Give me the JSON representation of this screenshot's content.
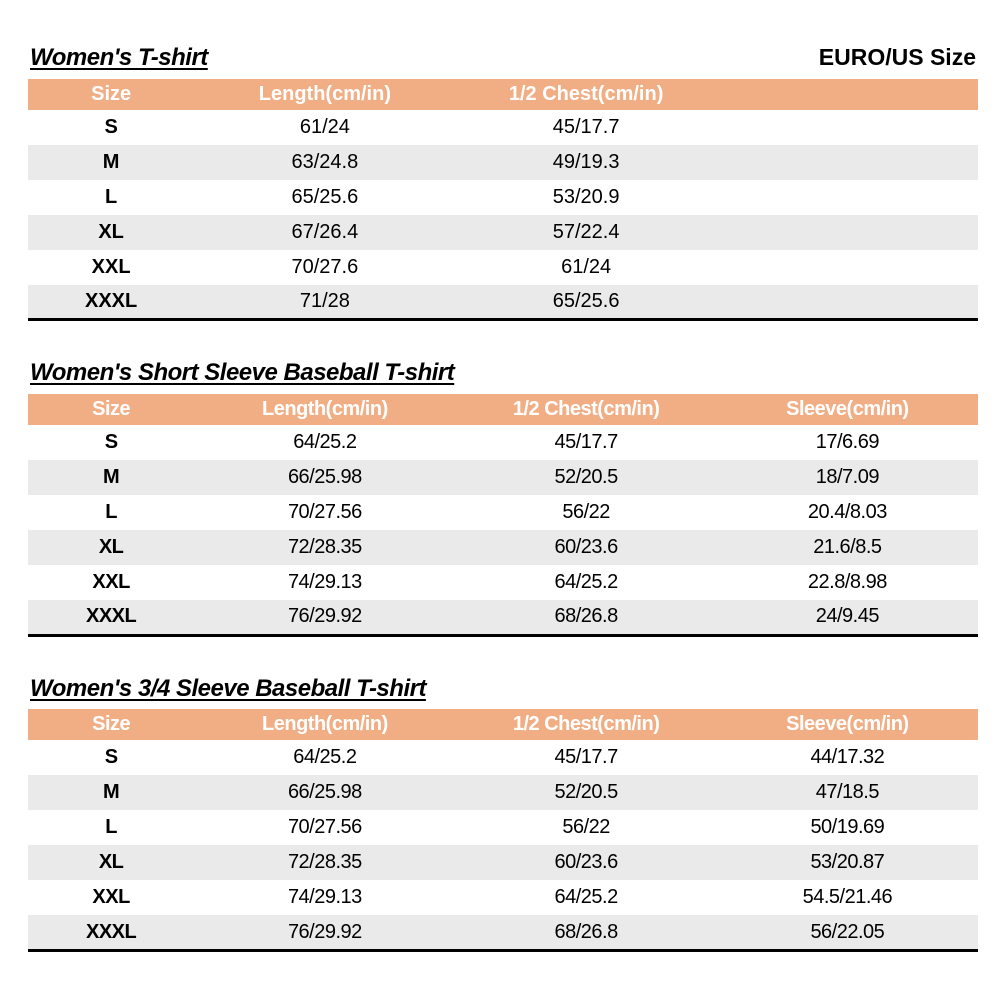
{
  "header": {
    "size_standard": "EURO/US Size"
  },
  "colors": {
    "header_bg": "#F1AE84",
    "header_text": "#FFFFFF",
    "row_alt_bg": "#EAEAEA",
    "border": "#000000"
  },
  "tables": [
    {
      "title": "Women's T-shirt",
      "columns": [
        "Size",
        "Length(cm/in)",
        "1/2 Chest(cm/in)",
        ""
      ],
      "rows": [
        [
          "S",
          "61/24",
          "45/17.7",
          ""
        ],
        [
          "M",
          "63/24.8",
          "49/19.3",
          ""
        ],
        [
          "L",
          "65/25.6",
          "53/20.9",
          ""
        ],
        [
          "XL",
          "67/26.4",
          "57/22.4",
          ""
        ],
        [
          "XXL",
          "70/27.6",
          "61/24",
          ""
        ],
        [
          "XXXL",
          "71/28",
          "65/25.6",
          ""
        ]
      ]
    },
    {
      "title": "Women's Short Sleeve Baseball T-shirt",
      "columns": [
        "Size",
        "Length(cm/in)",
        "1/2 Chest(cm/in)",
        "Sleeve(cm/in)"
      ],
      "rows": [
        [
          "S",
          "64/25.2",
          "45/17.7",
          "17/6.69"
        ],
        [
          "M",
          "66/25.98",
          "52/20.5",
          "18/7.09"
        ],
        [
          "L",
          "70/27.56",
          "56/22",
          "20.4/8.03"
        ],
        [
          "XL",
          "72/28.35",
          "60/23.6",
          "21.6/8.5"
        ],
        [
          "XXL",
          "74/29.13",
          "64/25.2",
          "22.8/8.98"
        ],
        [
          "XXXL",
          "76/29.92",
          "68/26.8",
          "24/9.45"
        ]
      ]
    },
    {
      "title": "Women's 3/4 Sleeve Baseball T-shirt",
      "columns": [
        "Size",
        "Length(cm/in)",
        "1/2 Chest(cm/in)",
        "Sleeve(cm/in)"
      ],
      "rows": [
        [
          "S",
          "64/25.2",
          "45/17.7",
          "44/17.32"
        ],
        [
          "M",
          "66/25.98",
          "52/20.5",
          "47/18.5"
        ],
        [
          "L",
          "70/27.56",
          "56/22",
          "50/19.69"
        ],
        [
          "XL",
          "72/28.35",
          "60/23.6",
          "53/20.87"
        ],
        [
          "XXL",
          "74/29.13",
          "64/25.2",
          "54.5/21.46"
        ],
        [
          "XXXL",
          "76/29.92",
          "68/26.8",
          "56/22.05"
        ]
      ]
    }
  ]
}
